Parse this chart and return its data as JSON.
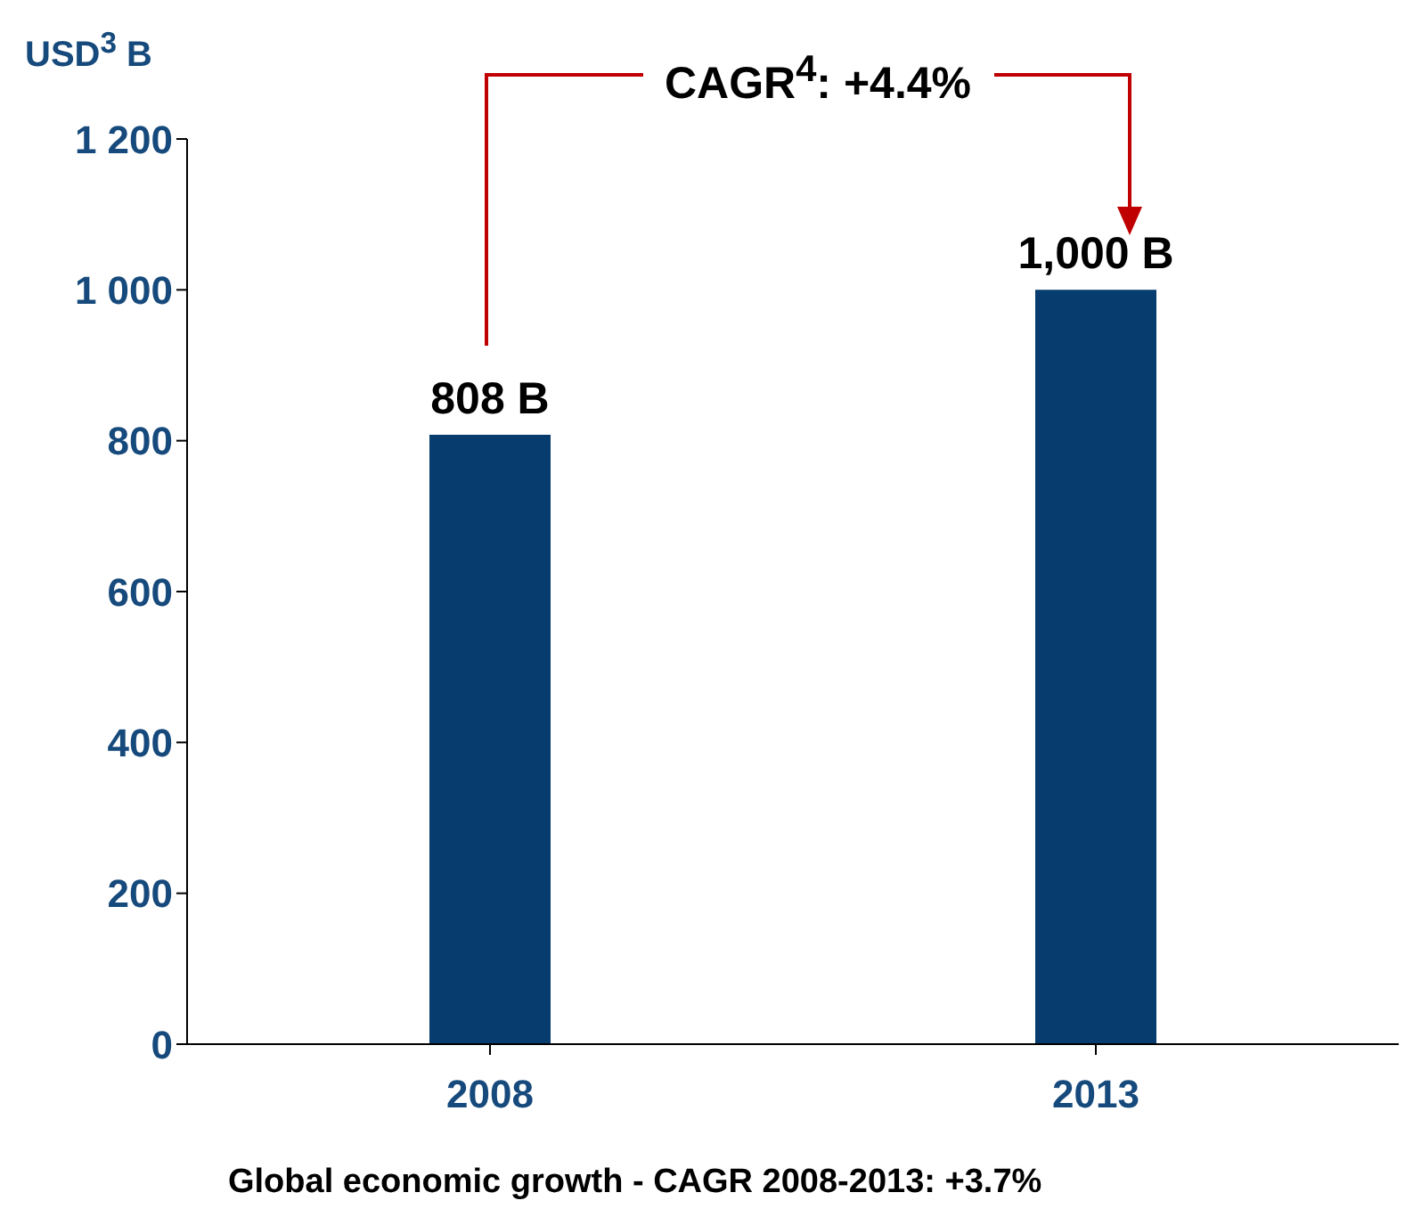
{
  "chart_data": {
    "type": "bar",
    "ylabel": "USD$^{3}$ B",
    "categories": [
      "2008",
      "2013"
    ],
    "values": [
      808,
      1000
    ],
    "color": "#063d6e",
    "value_labels": [
      "808 B",
      "1,000 B"
    ],
    "ylim": [
      0,
      1200
    ],
    "yticks": [
      0,
      200,
      400,
      600,
      800,
      {
        "value": 1000,
        "label": "1 000"
      },
      {
        "value": 1200,
        "label": "1 200"
      }
    ],
    "grid": false,
    "legend": false,
    "annotations": [
      "CAGR$^{4}$: +4.4%",
      "Global economic growth - CAGR 2008-2013: +3.7%"
    ]
  }
}
